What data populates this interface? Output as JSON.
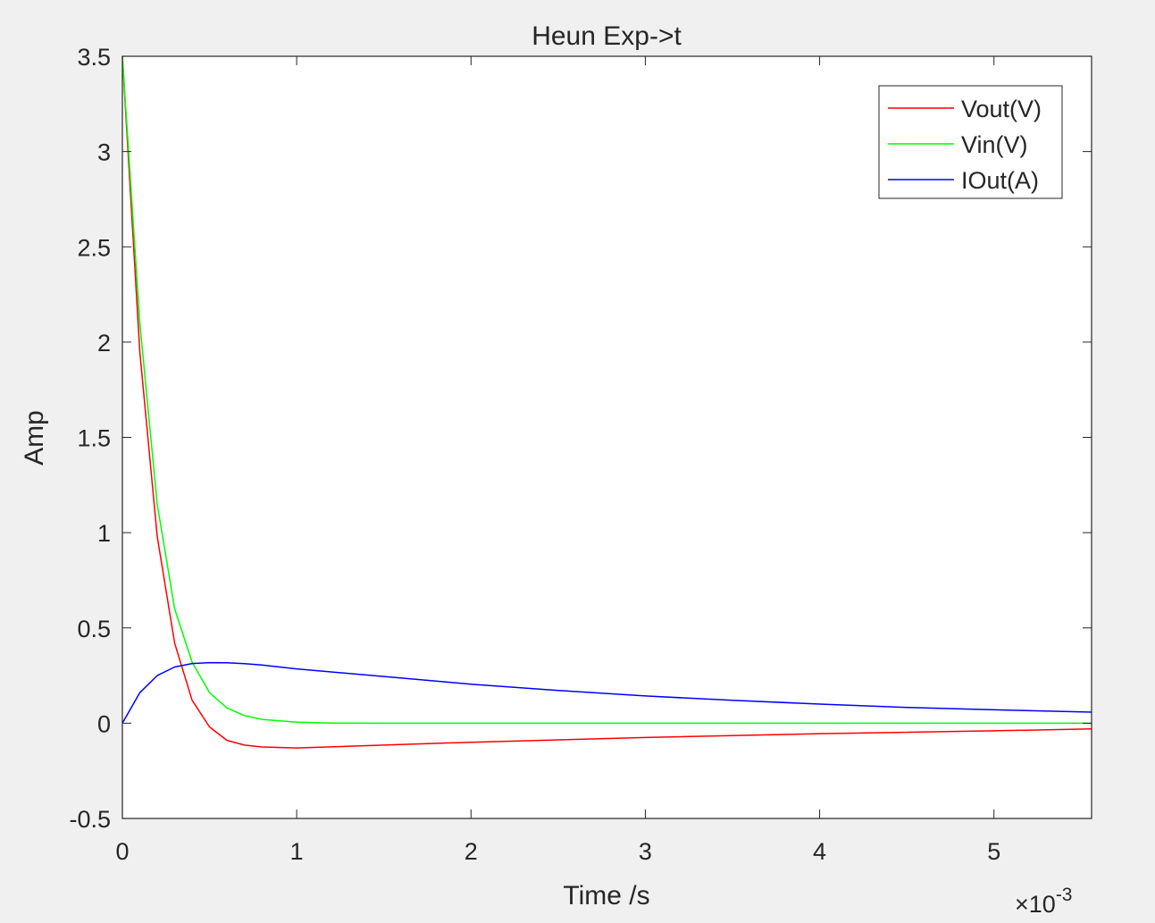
{
  "chart_data": {
    "type": "line",
    "title": "Heun Exp->t",
    "xlabel": "Time /s",
    "ylabel": "Amp",
    "xlim": [
      0,
      0.00556
    ],
    "ylim": [
      -0.5,
      3.5
    ],
    "x_ticks": [
      0,
      0.001,
      0.002,
      0.003,
      0.004,
      0.005
    ],
    "x_tick_labels": [
      "0",
      "1",
      "2",
      "3",
      "4",
      "5"
    ],
    "x_exponent_base": "×10",
    "x_exponent_power": "-3",
    "y_ticks": [
      -0.5,
      0,
      0.5,
      1,
      1.5,
      2,
      2.5,
      3,
      3.5
    ],
    "y_tick_labels": [
      "-0.5",
      "0",
      "0.5",
      "1",
      "1.5",
      "2",
      "2.5",
      "3",
      "3.5"
    ],
    "grid": false,
    "legend_position": "top-right",
    "series": [
      {
        "name": "Vout(V)",
        "color": "#ff0000",
        "x": [
          0,
          0.0001,
          0.0002,
          0.0003,
          0.0004,
          0.0005,
          0.0006,
          0.0007,
          0.0008,
          0.001,
          0.0015,
          0.002,
          0.003,
          0.004,
          0.005,
          0.00556
        ],
        "y": [
          3.5,
          1.95,
          0.98,
          0.42,
          0.12,
          -0.02,
          -0.09,
          -0.115,
          -0.125,
          -0.13,
          -0.115,
          -0.1,
          -0.075,
          -0.055,
          -0.04,
          -0.03
        ]
      },
      {
        "name": "Vin(V)",
        "color": "#00ff00",
        "x": [
          0,
          0.0001,
          0.0002,
          0.0003,
          0.0004,
          0.0005,
          0.0006,
          0.0007,
          0.0008,
          0.001,
          0.0012,
          0.0015,
          0.002,
          0.003,
          0.004,
          0.005,
          0.00556
        ],
        "y": [
          3.5,
          2.1,
          1.15,
          0.6,
          0.32,
          0.16,
          0.08,
          0.04,
          0.02,
          0.005,
          0.001,
          0,
          0,
          0,
          0,
          0,
          0
        ]
      },
      {
        "name": "IOut(A)",
        "color": "#0000ff",
        "x": [
          0,
          0.0001,
          0.0002,
          0.0003,
          0.0004,
          0.0005,
          0.0006,
          0.0007,
          0.0008,
          0.001,
          0.0015,
          0.002,
          0.0025,
          0.003,
          0.0035,
          0.004,
          0.0045,
          0.005,
          0.00556
        ],
        "y": [
          0,
          0.16,
          0.25,
          0.295,
          0.313,
          0.318,
          0.317,
          0.312,
          0.305,
          0.285,
          0.245,
          0.205,
          0.172,
          0.143,
          0.12,
          0.1,
          0.083,
          0.07,
          0.058
        ]
      }
    ]
  }
}
